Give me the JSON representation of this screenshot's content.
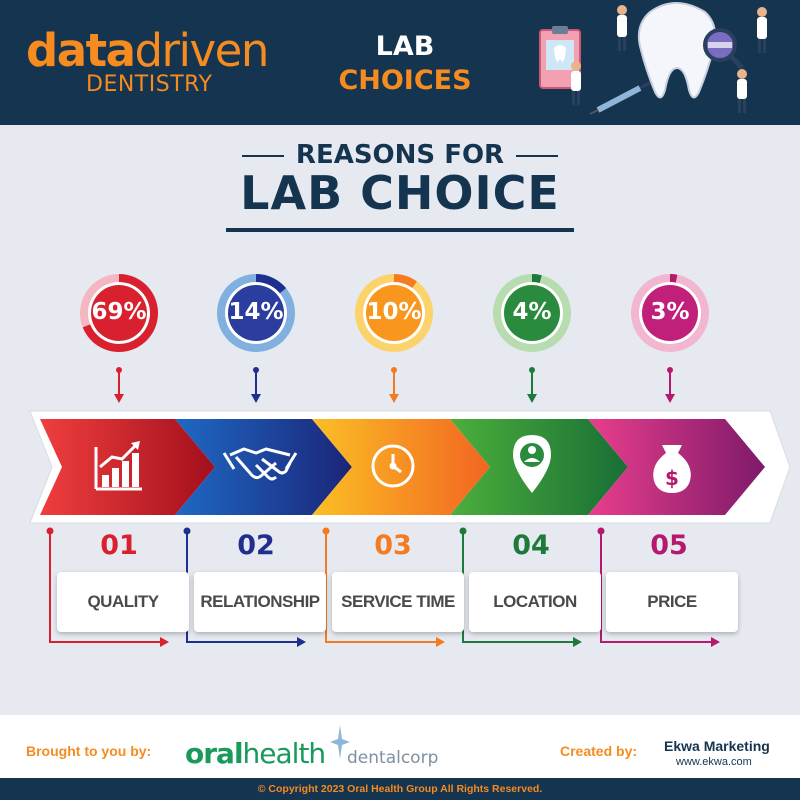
{
  "header": {
    "logo_data": "data",
    "logo_driven": "driven",
    "logo_sub": "DENTISTRY",
    "title_line1": "LAB",
    "title_line2": "CHOICES"
  },
  "title": {
    "small": "REASONS FOR",
    "big": "LAB CHOICE"
  },
  "reasons": [
    {
      "percent": "69%",
      "value": 0.69,
      "number": "01",
      "label": "QUALITY",
      "icon": "growth-chart-icon",
      "color": "#d9202e"
    },
    {
      "percent": "14%",
      "value": 0.14,
      "number": "02",
      "label": "RELATIONSHIP",
      "icon": "handshake-icon",
      "color": "#1f2f8f"
    },
    {
      "percent": "10%",
      "value": 0.1,
      "number": "03",
      "label": "SERVICE TIME",
      "icon": "clock-icon",
      "color": "#f47b20"
    },
    {
      "percent": "4%",
      "value": 0.04,
      "number": "04",
      "label": "LOCATION",
      "icon": "location-pin-icon",
      "color": "#1e7a3c"
    },
    {
      "percent": "3%",
      "value": 0.03,
      "number": "05",
      "label": "PRICE",
      "icon": "money-bag-icon",
      "color": "#b5186d"
    }
  ],
  "footer": {
    "brought_by": "Brought to you by:",
    "oralhealth_oral": "oral",
    "oralhealth_health": "health",
    "dentalcorp": "dentalcorp",
    "created_by": "Created by:",
    "ekwa": "Ekwa Marketing",
    "ekwa_url": "www.ekwa.com",
    "copyright": "© Copyright 2023 Oral Health Group All Rights Reserved."
  },
  "colors": {
    "navy": "#15344f",
    "orange": "#f68b1f",
    "background": "#e7e9f1"
  }
}
